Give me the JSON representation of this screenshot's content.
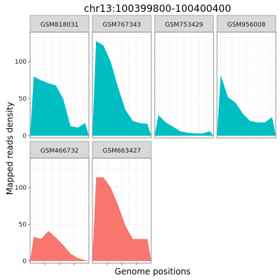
{
  "chart_data": {
    "type": "area",
    "title": "chr13:100399800-100400400",
    "xlabel": "Genome positions",
    "ylabel": "Mapped reads density",
    "ylim": [
      -3,
      140
    ],
    "xlim": [
      0,
      8
    ],
    "y_ticks": [
      "0",
      "50",
      "100"
    ],
    "grid": true,
    "legend": "none",
    "series_colors": {
      "teal": "#00BFC4",
      "salmon": "#F8766D"
    },
    "panels": [
      {
        "name": "GSM818031",
        "color": "#00BFC4",
        "values": [
          80,
          75,
          71,
          68,
          50,
          13,
          11,
          17
        ]
      },
      {
        "name": "GSM767343",
        "color": "#00BFC4",
        "values": [
          128,
          122,
          100,
          65,
          35,
          20,
          17,
          16
        ]
      },
      {
        "name": "GSM753429",
        "color": "#00BFC4",
        "values": [
          28,
          18,
          12,
          6,
          4,
          3,
          3,
          6
        ]
      },
      {
        "name": "GSM956008",
        "color": "#00BFC4",
        "values": [
          82,
          52,
          45,
          30,
          20,
          18,
          18,
          25
        ]
      },
      {
        "name": "GSM466732",
        "color": "#F8766D",
        "values": [
          33,
          30,
          41,
          32,
          22,
          10,
          4,
          1
        ]
      },
      {
        "name": "GSM663427",
        "color": "#F8766D",
        "values": [
          114,
          114,
          100,
          76,
          48,
          30,
          30,
          30
        ]
      }
    ]
  }
}
